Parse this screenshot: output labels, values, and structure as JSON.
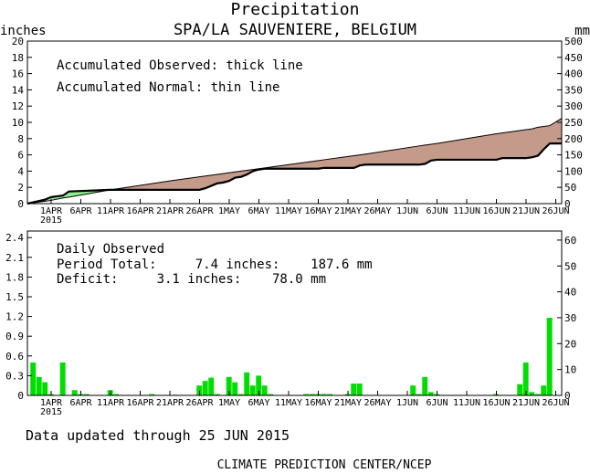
{
  "header": {
    "title": "Precipitation",
    "subtitle": "SPA/LA SAUVENIERE, BELGIUM",
    "left_unit": "inches",
    "right_unit": "mm"
  },
  "footer": {
    "updated": "Data updated through 25 JUN 2015",
    "credit": "CLIMATE PREDICTION CENTER/NCEP"
  },
  "colors": {
    "surplus_fill": "#90ee90",
    "deficit_fill": "#c49a8a",
    "bar_fill": "#00dd00",
    "axis": "#000000"
  },
  "chart_data": [
    {
      "type": "area",
      "panel": "accumulated",
      "annotations": [
        "Accumulated Observed: thick line",
        "Accumulated Normal: thin line"
      ],
      "x_tick_labels": [
        "1APR",
        "6APR",
        "11APR",
        "16APR",
        "21APR",
        "26APR",
        "1MAY",
        "6MAY",
        "11MAY",
        "16MAY",
        "21MAY",
        "26MAY",
        "1JUN",
        "6JUN",
        "11JUN",
        "16JUN",
        "21JUN",
        "26JUN"
      ],
      "x_year_label": "2015",
      "x_range": [
        "2015-03-28",
        "2015-06-26"
      ],
      "y_left": {
        "unit": "inches",
        "range": [
          0,
          20
        ],
        "ticks": [
          0,
          2,
          4,
          6,
          8,
          10,
          12,
          14,
          16,
          18,
          20
        ]
      },
      "y_right": {
        "unit": "mm",
        "range": [
          0,
          500
        ],
        "ticks": [
          0,
          50,
          100,
          150,
          200,
          250,
          300,
          350,
          400,
          450,
          500
        ]
      },
      "x": [
        "2015-03-28",
        "2015-03-31",
        "2015-04-01",
        "2015-04-03",
        "2015-04-04",
        "2015-04-11",
        "2015-04-21",
        "2015-04-26",
        "2015-04-27",
        "2015-04-28",
        "2015-04-29",
        "2015-04-30",
        "2015-05-01",
        "2015-05-02",
        "2015-05-03",
        "2015-05-04",
        "2015-05-05",
        "2015-05-06",
        "2015-05-07",
        "2015-05-16",
        "2015-05-17",
        "2015-05-22",
        "2015-05-23",
        "2015-05-24",
        "2015-06-02",
        "2015-06-03",
        "2015-06-04",
        "2015-06-05",
        "2015-06-15",
        "2015-06-16",
        "2015-06-20",
        "2015-06-21",
        "2015-06-22",
        "2015-06-23",
        "2015-06-24",
        "2015-06-26"
      ],
      "series": [
        {
          "name": "Accumulated Observed",
          "values": [
            0,
            0.5,
            0.8,
            1.0,
            1.5,
            1.7,
            1.7,
            1.7,
            1.9,
            2.2,
            2.5,
            2.6,
            2.8,
            3.2,
            3.3,
            3.6,
            4.0,
            4.2,
            4.3,
            4.3,
            4.4,
            4.4,
            4.7,
            4.8,
            4.8,
            4.9,
            5.3,
            5.4,
            5.4,
            5.6,
            5.6,
            5.7,
            5.9,
            6.7,
            7.4,
            7.4
          ]
        },
        {
          "name": "Accumulated Normal",
          "values": [
            0,
            0.3,
            0.4,
            0.7,
            0.8,
            1.7,
            2.8,
            3.3,
            3.4,
            3.5,
            3.6,
            3.7,
            3.8,
            3.9,
            4.0,
            4.1,
            4.2,
            4.3,
            4.4,
            5.3,
            5.4,
            5.9,
            6.0,
            6.1,
            7.1,
            7.2,
            7.3,
            7.4,
            8.6,
            8.7,
            9.1,
            9.2,
            9.4,
            9.5,
            9.6,
            10.5
          ]
        }
      ]
    },
    {
      "type": "bar",
      "panel": "daily",
      "annotations": [
        "Daily Observed",
        "Period Total:     7.4 inches:    187.6 mm",
        "Deficit:     3.1 inches:    78.0 mm"
      ],
      "x_tick_labels": [
        "1APR",
        "6APR",
        "11APR",
        "16APR",
        "21APR",
        "26APR",
        "1MAY",
        "6MAY",
        "11MAY",
        "16MAY",
        "21MAY",
        "26MAY",
        "1JUN",
        "6JUN",
        "11JUN",
        "16JUN",
        "21JUN",
        "26JUN"
      ],
      "x_year_label": "2015",
      "y_left": {
        "unit": "inches",
        "range": [
          0,
          2.5
        ],
        "ticks": [
          0,
          0.3,
          0.6,
          0.9,
          1.2,
          1.5,
          1.8,
          2.1,
          2.4
        ]
      },
      "y_right": {
        "unit": "mm",
        "range": [
          0,
          63.5
        ],
        "ticks": [
          0,
          10,
          20,
          30,
          40,
          50,
          60
        ]
      },
      "x": [
        "2015-03-29",
        "2015-03-30",
        "2015-03-31",
        "2015-04-01",
        "2015-04-03",
        "2015-04-05",
        "2015-04-06",
        "2015-04-07",
        "2015-04-11",
        "2015-04-12",
        "2015-04-18",
        "2015-04-22",
        "2015-04-26",
        "2015-04-27",
        "2015-04-28",
        "2015-04-29",
        "2015-05-01",
        "2015-05-02",
        "2015-05-03",
        "2015-05-04",
        "2015-05-05",
        "2015-05-06",
        "2015-05-07",
        "2015-05-08",
        "2015-05-14",
        "2015-05-15",
        "2015-05-16",
        "2015-05-17",
        "2015-05-18",
        "2015-05-21",
        "2015-05-22",
        "2015-05-23",
        "2015-06-01",
        "2015-06-02",
        "2015-06-03",
        "2015-06-04",
        "2015-06-05",
        "2015-06-15",
        "2015-06-19",
        "2015-06-20",
        "2015-06-21",
        "2015-06-22",
        "2015-06-23",
        "2015-06-24"
      ],
      "values": [
        0.5,
        0.28,
        0.2,
        0.02,
        0.5,
        0.08,
        0.02,
        0.02,
        0.08,
        0.02,
        0.02,
        0.01,
        0.15,
        0.22,
        0.27,
        0.02,
        0.28,
        0.2,
        0.02,
        0.35,
        0.15,
        0.3,
        0.15,
        0.02,
        0.02,
        0.02,
        0.02,
        0.02,
        0.02,
        0.02,
        0.18,
        0.18,
        0.15,
        0.02,
        0.28,
        0.05,
        0.02,
        0.02,
        0.17,
        0.5,
        0.05,
        0.02,
        0.15,
        1.18
      ]
    }
  ]
}
